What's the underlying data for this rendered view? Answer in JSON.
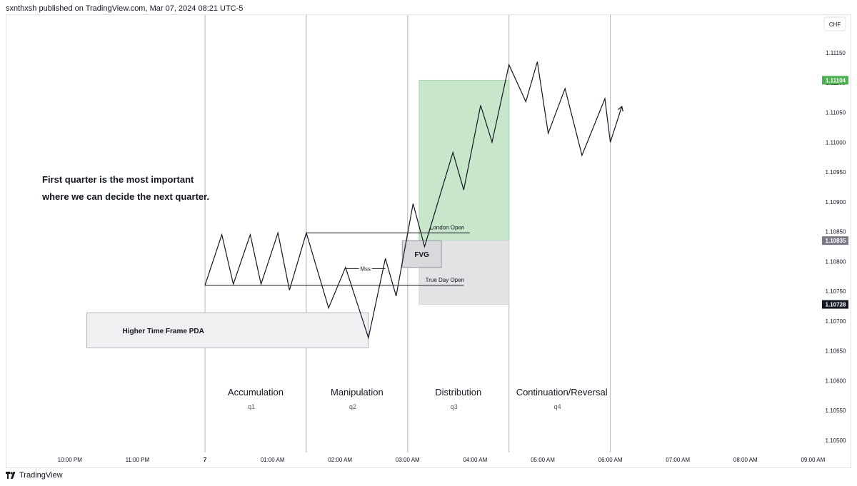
{
  "header": {
    "published": "sxnthxsh published on TradingView.com, Mar 07, 2024 08:21 UTC-5"
  },
  "footer": {
    "brand": "TradingView"
  },
  "chart_data": {
    "type": "line",
    "title": "",
    "currency": "CHF",
    "y_range": [
      1.1047,
      1.112
    ],
    "y_ticks": [
      "1.10500",
      "1.10550",
      "1.10600",
      "1.10650",
      "1.10700",
      "1.10750",
      "1.10800",
      "1.10850",
      "1.10900",
      "1.10950",
      "1.11000",
      "1.11050",
      "1.11100",
      "1.11150"
    ],
    "x_range_hours": [
      -2.5,
      9.0
    ],
    "x_ticks": [
      {
        "t": -2.0,
        "label": "10:00 PM"
      },
      {
        "t": -1.0,
        "label": "11:00 PM"
      },
      {
        "t": 0.0,
        "label": "7"
      },
      {
        "t": 1.0,
        "label": "01:00 AM"
      },
      {
        "t": 2.0,
        "label": "02:00 AM"
      },
      {
        "t": 3.0,
        "label": "03:00 AM"
      },
      {
        "t": 4.0,
        "label": "04:00 AM"
      },
      {
        "t": 5.0,
        "label": "05:00 AM"
      },
      {
        "t": 6.0,
        "label": "06:00 AM"
      },
      {
        "t": 7.0,
        "label": "07:00 AM"
      },
      {
        "t": 8.0,
        "label": "08:00 AM"
      },
      {
        "t": 9.0,
        "label": "09:00 AM"
      }
    ],
    "price_path": [
      {
        "t": 0.0,
        "y": 1.1076
      },
      {
        "t": 0.25,
        "y": 1.10845
      },
      {
        "t": 0.42,
        "y": 1.10762
      },
      {
        "t": 0.67,
        "y": 1.10845
      },
      {
        "t": 0.83,
        "y": 1.10762
      },
      {
        "t": 1.08,
        "y": 1.10848
      },
      {
        "t": 1.25,
        "y": 1.10752
      },
      {
        "t": 1.5,
        "y": 1.10848
      },
      {
        "t": 1.83,
        "y": 1.10722
      },
      {
        "t": 2.08,
        "y": 1.1079
      },
      {
        "t": 2.42,
        "y": 1.10672
      },
      {
        "t": 2.67,
        "y": 1.10805
      },
      {
        "t": 2.83,
        "y": 1.10742
      },
      {
        "t": 3.08,
        "y": 1.10897
      },
      {
        "t": 3.25,
        "y": 1.10825
      },
      {
        "t": 3.67,
        "y": 1.10983
      },
      {
        "t": 3.83,
        "y": 1.1092
      },
      {
        "t": 4.08,
        "y": 1.11062
      },
      {
        "t": 4.25,
        "y": 1.11
      },
      {
        "t": 4.5,
        "y": 1.1113
      },
      {
        "t": 4.75,
        "y": 1.11068
      },
      {
        "t": 4.92,
        "y": 1.11135
      },
      {
        "t": 5.08,
        "y": 1.11015
      },
      {
        "t": 5.33,
        "y": 1.1109
      },
      {
        "t": 5.58,
        "y": 1.10978
      },
      {
        "t": 5.92,
        "y": 1.11073
      },
      {
        "t": 6.0,
        "y": 1.11
      },
      {
        "t": 6.17,
        "y": 1.1106
      }
    ],
    "price_labels": [
      {
        "value": "1.11104",
        "y": 1.11104,
        "color": "#4caf50"
      },
      {
        "value": "1.10835",
        "y": 1.10835,
        "color": "#787b86"
      },
      {
        "value": "1.10728",
        "y": 1.10728,
        "color": "#131722"
      }
    ],
    "session_lines_hours": [
      0.0,
      1.5,
      3.0,
      4.5,
      6.0
    ],
    "zones": [
      {
        "name": "green-zone",
        "t1": 3.17,
        "t2": 4.5,
        "y1": 1.10835,
        "y2": 1.11104,
        "fill": "#c8e6c9",
        "stroke": "#a5d6a7"
      },
      {
        "name": "grey-zone",
        "t1": 3.17,
        "t2": 4.5,
        "y1": 1.10728,
        "y2": 1.10835,
        "fill": "#e3e3e5",
        "stroke": "#d1d4dc"
      },
      {
        "name": "fvg-zone",
        "t1": 2.92,
        "t2": 3.5,
        "y1": 1.1079,
        "y2": 1.10835,
        "fill": "#d9d9dc",
        "stroke": "#9598a1"
      },
      {
        "name": "htf-pda-zone",
        "t1": -1.75,
        "t2": 2.42,
        "y1": 1.10655,
        "y2": 1.10714,
        "fill": "#eff0f2",
        "stroke": "#b2b5be"
      }
    ],
    "levels": [
      {
        "name": "london-open-line",
        "label": "London Open",
        "t1": 1.5,
        "t2": 3.92,
        "y": 1.10848
      },
      {
        "name": "true-day-open-line",
        "label": "True Day Open",
        "t1": 0.0,
        "t2": 3.83,
        "y": 1.1076
      },
      {
        "name": "mss-line",
        "label": "Mss",
        "t1": 2.08,
        "t2": 2.67,
        "y": 1.10788
      }
    ],
    "zone_labels": {
      "fvg": "FVG",
      "htf": "Higher Time Frame PDA"
    },
    "annotation": [
      "First quarter is the most important",
      "where we can decide the next quarter."
    ],
    "quarters": [
      {
        "name": "Accumulation",
        "q": "q1",
        "t": 0.75
      },
      {
        "name": "Manipulation",
        "q": "q2",
        "t": 2.25
      },
      {
        "name": "Distribution",
        "q": "q3",
        "t": 3.75
      },
      {
        "name": "Continuation/Reversal",
        "q": "q4",
        "t": 5.25
      }
    ]
  }
}
